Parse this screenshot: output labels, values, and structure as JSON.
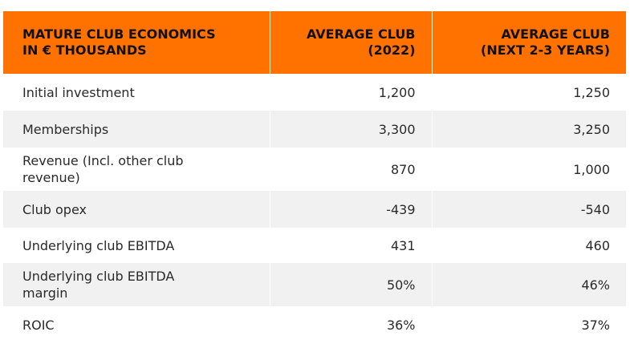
{
  "table": {
    "headers": {
      "col1_line1": "MATURE CLUB ECONOMICS",
      "col1_line2": "IN € THOUSANDS",
      "col2_line1": "AVERAGE CLUB",
      "col2_line2": "(2022)",
      "col3_line1": "AVERAGE CLUB",
      "col3_line2": "(NEXT 2-3 YEARS)"
    },
    "rows": [
      {
        "label_line1": "Initial investment",
        "label_line2": "",
        "v2022": "1,200",
        "vnext": "1,250"
      },
      {
        "label_line1": "Memberships",
        "label_line2": "",
        "v2022": "3,300",
        "vnext": "3,250"
      },
      {
        "label_line1": "Revenue (Incl. other club",
        "label_line2": "revenue)",
        "v2022": "870",
        "vnext": "1,000"
      },
      {
        "label_line1": "Club opex",
        "label_line2": "",
        "v2022": "-439",
        "vnext": "-540"
      },
      {
        "label_line1": "Underlying club EBITDA",
        "label_line2": "",
        "v2022": "431",
        "vnext": "460"
      },
      {
        "label_line1": "Underlying club EBITDA",
        "label_line2": "margin",
        "v2022": "50%",
        "vnext": "46%"
      },
      {
        "label_line1": "ROIC",
        "label_line2": "",
        "v2022": "36%",
        "vnext": "37%"
      }
    ],
    "colors": {
      "header_bg": "#ff7200",
      "stripe": "#f1f1f1"
    }
  }
}
